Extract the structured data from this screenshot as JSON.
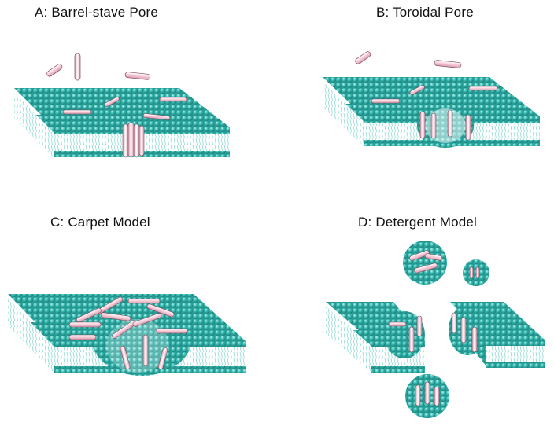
{
  "panels": [
    {
      "id": "A",
      "title": "A: Barrel-stave Pore"
    },
    {
      "id": "B",
      "title": "B: Toroidal Pore"
    },
    {
      "id": "C",
      "title": "C: Carpet Model"
    },
    {
      "id": "D",
      "title": "D: Detergent Model"
    }
  ],
  "colors": {
    "lipid_head": "#3bbdb5",
    "lipid_head_dark": "#1f8c86",
    "lipid_head_light": "#a9ece6",
    "tail": "#5fc8c0",
    "peptide": "#f4c3d1",
    "peptide_edge": "#7c4d5c",
    "peptide_highlight": "#ffffff"
  }
}
